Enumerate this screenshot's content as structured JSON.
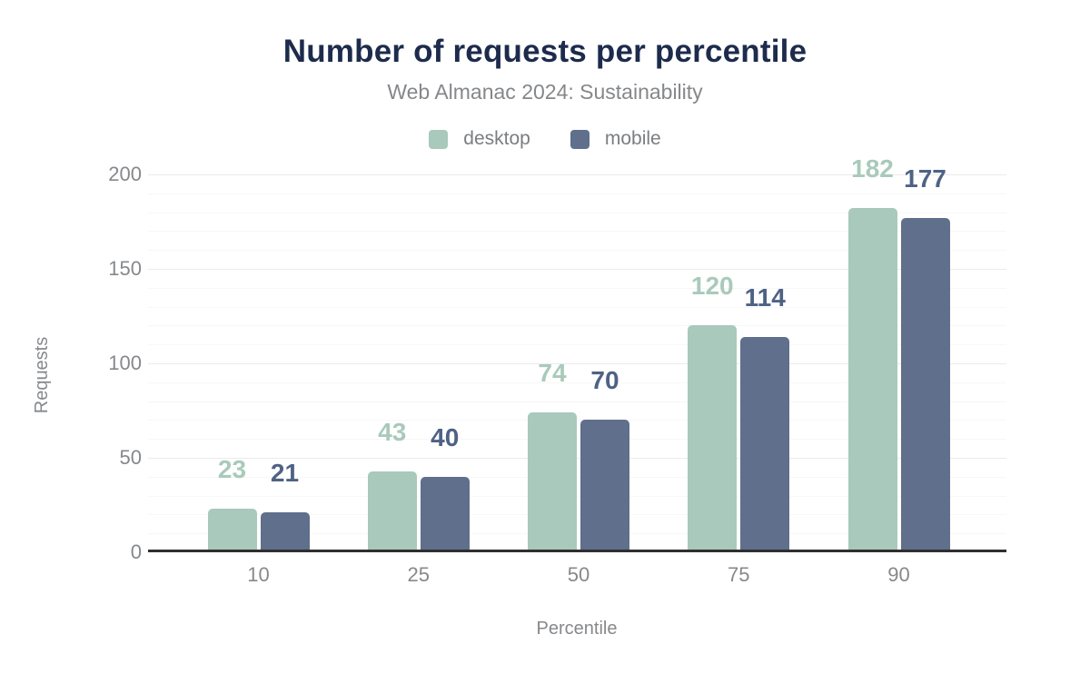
{
  "chart_data": {
    "type": "bar",
    "title": "Number of requests per percentile",
    "subtitle": "Web Almanac 2024: Sustainability",
    "xlabel": "Percentile",
    "ylabel": "Requests",
    "categories": [
      "10",
      "25",
      "50",
      "75",
      "90"
    ],
    "series": [
      {
        "name": "desktop",
        "values": [
          23,
          43,
          74,
          120,
          182
        ],
        "color": "#a8c9bb",
        "label_color": "#a9cabb"
      },
      {
        "name": "mobile",
        "values": [
          21,
          40,
          70,
          114,
          177
        ],
        "color": "#5f6f8c",
        "label_color": "#4e6285"
      }
    ],
    "ylim": [
      0,
      200
    ],
    "yticks": [
      0,
      50,
      100,
      150,
      200
    ],
    "grid": {
      "major_step": 50,
      "minor_step": 10,
      "grid_on": true
    },
    "legend_position": "top",
    "data_labels": true
  },
  "colors": {
    "title": "#1d2b4c",
    "subtitle_text": "#85878a",
    "axis_text": "#86888b",
    "legend_text": "#7b7d80",
    "axis_line": "#2f2f2f",
    "grid_major": "#ebebeb",
    "grid_minor": "#f7f7f7",
    "background": "#ffffff"
  }
}
